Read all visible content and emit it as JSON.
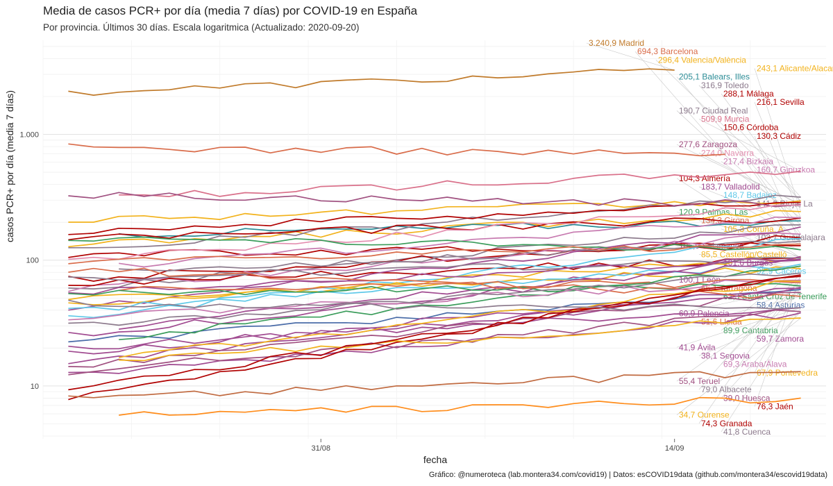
{
  "chart_data": {
    "type": "line",
    "title": "Media de casos PCR+ por día (media 7 días) por COVID-19 en España",
    "subtitle": "Por provincia. Últimos 30 días. Escala logaritmica  (Actualizado: 2020-09-20)",
    "caption": "Gráfico: @numeroteca (lab.montera34.com/covid19) | Datos: esCOVID19data (github.com/montera34/escovid19data)",
    "xlabel": "fecha",
    "ylabel": "casos PCR+ por día (media 7 días)",
    "y_scale": "log",
    "ylim": [
      3.8,
      5600
    ],
    "xlim": [
      "2020-08-20",
      "2020-09-20"
    ],
    "x_ticks": [
      {
        "date": "2020-08-31",
        "label": "31/08"
      },
      {
        "date": "2020-09-14",
        "label": "14/09"
      }
    ],
    "y_ticks": [
      {
        "value": 10,
        "label": "10"
      },
      {
        "value": 100,
        "label": "100"
      },
      {
        "value": 1000,
        "label": "1.000"
      }
    ],
    "grid": true,
    "legend": "direct labels at line ends",
    "dates": [
      "2020-08-21",
      "2020-08-22",
      "2020-08-23",
      "2020-08-24",
      "2020-08-25",
      "2020-08-26",
      "2020-08-27",
      "2020-08-28",
      "2020-08-29",
      "2020-08-30",
      "2020-08-31",
      "2020-09-01",
      "2020-09-02",
      "2020-09-03",
      "2020-09-04",
      "2020-09-05",
      "2020-09-06",
      "2020-09-07",
      "2020-09-08",
      "2020-09-09",
      "2020-09-10",
      "2020-09-11",
      "2020-09-12",
      "2020-09-13",
      "2020-09-14",
      "2020-09-15",
      "2020-09-16",
      "2020-09-17",
      "2020-09-18",
      "2020-09-19"
    ],
    "series": [
      {
        "name": "Madrid",
        "label": "3.240,9 Madrid",
        "color": "#c07a2a",
        "end_value": 3240.9,
        "start": 2140,
        "end_date": "2020-09-14"
      },
      {
        "name": "Barcelona",
        "label": "694,3 Barcelona",
        "color": "#d96c4a",
        "end_value": 694.3,
        "start": 790,
        "end_date": "2020-09-16"
      },
      {
        "name": "Valencia/València",
        "label": "296,4 Valencia/València",
        "color": "#f2b21b",
        "end_value": 296.4,
        "start": 210
      },
      {
        "name": "Alicante/Alacant",
        "label": "243,1 Alicante/Alacant",
        "color": "#f2b21b",
        "end_value": 243.1,
        "start": 130
      },
      {
        "name": "Balears, Illes",
        "label": "205,1 Balears, Illes",
        "color": "#2b8c96",
        "end_value": 205.1,
        "start": 160
      },
      {
        "name": "Toledo",
        "label": "316,9 Toledo",
        "color": "#8c7a8c",
        "end_value": 316.9,
        "start": 120
      },
      {
        "name": "Málaga",
        "label": "288,1 Málaga",
        "color": "#b00000",
        "end_value": 288.1,
        "start": 170
      },
      {
        "name": "Sevilla",
        "label": "216,1 Sevilla",
        "color": "#b00000",
        "end_value": 216.1,
        "start": 150
      },
      {
        "name": "Ciudad Real",
        "label": "190,7 Ciudad Real",
        "color": "#8c7a8c",
        "end_value": 190.7,
        "start": 60
      },
      {
        "name": "Murcia",
        "label": "509,9 Murcia",
        "color": "#d9708a",
        "end_value": 509.9,
        "start": 320
      },
      {
        "name": "Córdoba",
        "label": "150,6 Córdoba",
        "color": "#b00000",
        "end_value": 150.6,
        "start": 70
      },
      {
        "name": "Cádiz",
        "label": "130,3 Cádiz",
        "color": "#b00000",
        "end_value": 130.3,
        "start": 110
      },
      {
        "name": "Zaragoza",
        "label": "277,6 Zaragoza",
        "color": "#a05080",
        "end_value": 277.6,
        "start": 330
      },
      {
        "name": "Navarra",
        "label": "274,0 Navarra",
        "color": "#e48fb0",
        "end_value": 274.0,
        "start": 100
      },
      {
        "name": "Bizkaia",
        "label": "217,4 Bizkaia",
        "color": "#c77ab0",
        "end_value": 217.4,
        "start": 90
      },
      {
        "name": "Gipuzkoa",
        "label": "160,7 Gipuzkoa",
        "color": "#c77ab0",
        "end_value": 160.7,
        "start": 60
      },
      {
        "name": "Almería",
        "label": "104,3 Almería",
        "color": "#b00000",
        "end_value": 104.3,
        "start": 65
      },
      {
        "name": "Valladolid",
        "label": "183,7 Valladolid",
        "color": "#a04a90",
        "end_value": 183.7,
        "start": 40
      },
      {
        "name": "Badajoz",
        "label": "148,7 Badajoz",
        "color": "#5ec8e8",
        "end_value": 148.7,
        "start": 35
      },
      {
        "name": "Rioja, La",
        "label": "141,3 Rioja, La",
        "color": "#8c7a8c",
        "end_value": 141.3,
        "start": 80
      },
      {
        "name": "Palmas, Las",
        "label": "120,9 Palmas, Las",
        "color": "#3a9c5a",
        "end_value": 120.9,
        "start": 150
      },
      {
        "name": "Girona",
        "label": "134,3 Girona",
        "color": "#d96c4a",
        "end_value": 134.3,
        "start": 95
      },
      {
        "name": "Coruña, A",
        "label": "105,3 Coruña, A",
        "color": "#f2b21b",
        "end_value": 105.3,
        "start": 45
      },
      {
        "name": "Guadalajara",
        "label": "103,7 Guadalajara",
        "color": "#8c7a8c",
        "end_value": 103.7,
        "start": 70
      },
      {
        "name": "Salamanca",
        "label": "106,9 Salamanca",
        "color": "#a04a90",
        "end_value": 106.9,
        "start": 30
      },
      {
        "name": "Castellón/Castelló",
        "label": "85,5 Castellón/Castelló",
        "color": "#f2b21b",
        "end_value": 85.5,
        "start": 50
      },
      {
        "name": "Burgos",
        "label": "101,6 Burgos",
        "color": "#a04a90",
        "end_value": 101.6,
        "start": 55
      },
      {
        "name": "Cáceres",
        "label": "92,9 Cáceres",
        "color": "#5ec8e8",
        "end_value": 92.9,
        "start": 40
      },
      {
        "name": "León",
        "label": "100,1 León",
        "color": "#a04a90",
        "end_value": 100.1,
        "start": 25
      },
      {
        "name": "Tarragona",
        "label": "66,1 Tarragona",
        "color": "#d96c4a",
        "end_value": 66.1,
        "start": 60
      },
      {
        "name": "Santa Cruz de Tenerife",
        "label": "62,3 Santa Cruz de Tenerife",
        "color": "#3a9c5a",
        "end_value": 62.3,
        "start": 55
      },
      {
        "name": "Asturias",
        "label": "58,4 Asturias",
        "color": "#4a6ca8",
        "end_value": 58.4,
        "start": 22
      },
      {
        "name": "Palencia",
        "label": "60,9 Palencia",
        "color": "#a04a90",
        "end_value": 60.9,
        "start": 18
      },
      {
        "name": "Lleida",
        "label": "51,6 Lleida",
        "color": "#d96c4a",
        "end_value": 51.6,
        "start": 85
      },
      {
        "name": "Cantabria",
        "label": "89,9 Cantabria",
        "color": "#3a9c5a",
        "end_value": 89.9,
        "start": 24
      },
      {
        "name": "Zamora",
        "label": "59,7 Zamora",
        "color": "#a04a90",
        "end_value": 59.7,
        "start": 15
      },
      {
        "name": "Ávila",
        "label": "41,9 Ávila",
        "color": "#a04a90",
        "end_value": 41.9,
        "start": 20
      },
      {
        "name": "Segovia",
        "label": "38,1 Segovia",
        "color": "#a04a90",
        "end_value": 38.1,
        "start": 12
      },
      {
        "name": "Araba/Álava",
        "label": "69,3 Araba/Álava",
        "color": "#c77ab0",
        "end_value": 69.3,
        "start": 35
      },
      {
        "name": "Pontevedra",
        "label": "67,9 Pontevedra",
        "color": "#f2b21b",
        "end_value": 67.9,
        "start": 17
      },
      {
        "name": "Teruel",
        "label": "55,4 Teruel",
        "color": "#a05080",
        "end_value": 55.4,
        "start": 14
      },
      {
        "name": "Albacete",
        "label": "79,0 Albacete",
        "color": "#8c7a8c",
        "end_value": 79.0,
        "start": 30
      },
      {
        "name": "Huesca",
        "label": "39,0 Huesca",
        "color": "#a05080",
        "end_value": 39.0,
        "start": 13
      },
      {
        "name": "Jaén",
        "label": "76,3 Jaén",
        "color": "#b00000",
        "end_value": 76.3,
        "start": 8
      },
      {
        "name": "Ourense",
        "label": "34,7 Ourense",
        "color": "#f2b21b",
        "end_value": 34.7,
        "start": 16
      },
      {
        "name": "Granada",
        "label": "74,3 Granada",
        "color": "#b00000",
        "end_value": 74.3,
        "start": 9
      },
      {
        "name": "Cuenca",
        "label": "41,8 Cuenca",
        "color": "#8c7a8c",
        "end_value": 41.8,
        "start": 45
      }
    ],
    "unlabeled_series": [
      {
        "color": "#ff8c1a",
        "start": 5.8,
        "end_value": 8.0
      },
      {
        "color": "#c06a40",
        "start": 8.0,
        "end_value": 13.0
      }
    ]
  }
}
